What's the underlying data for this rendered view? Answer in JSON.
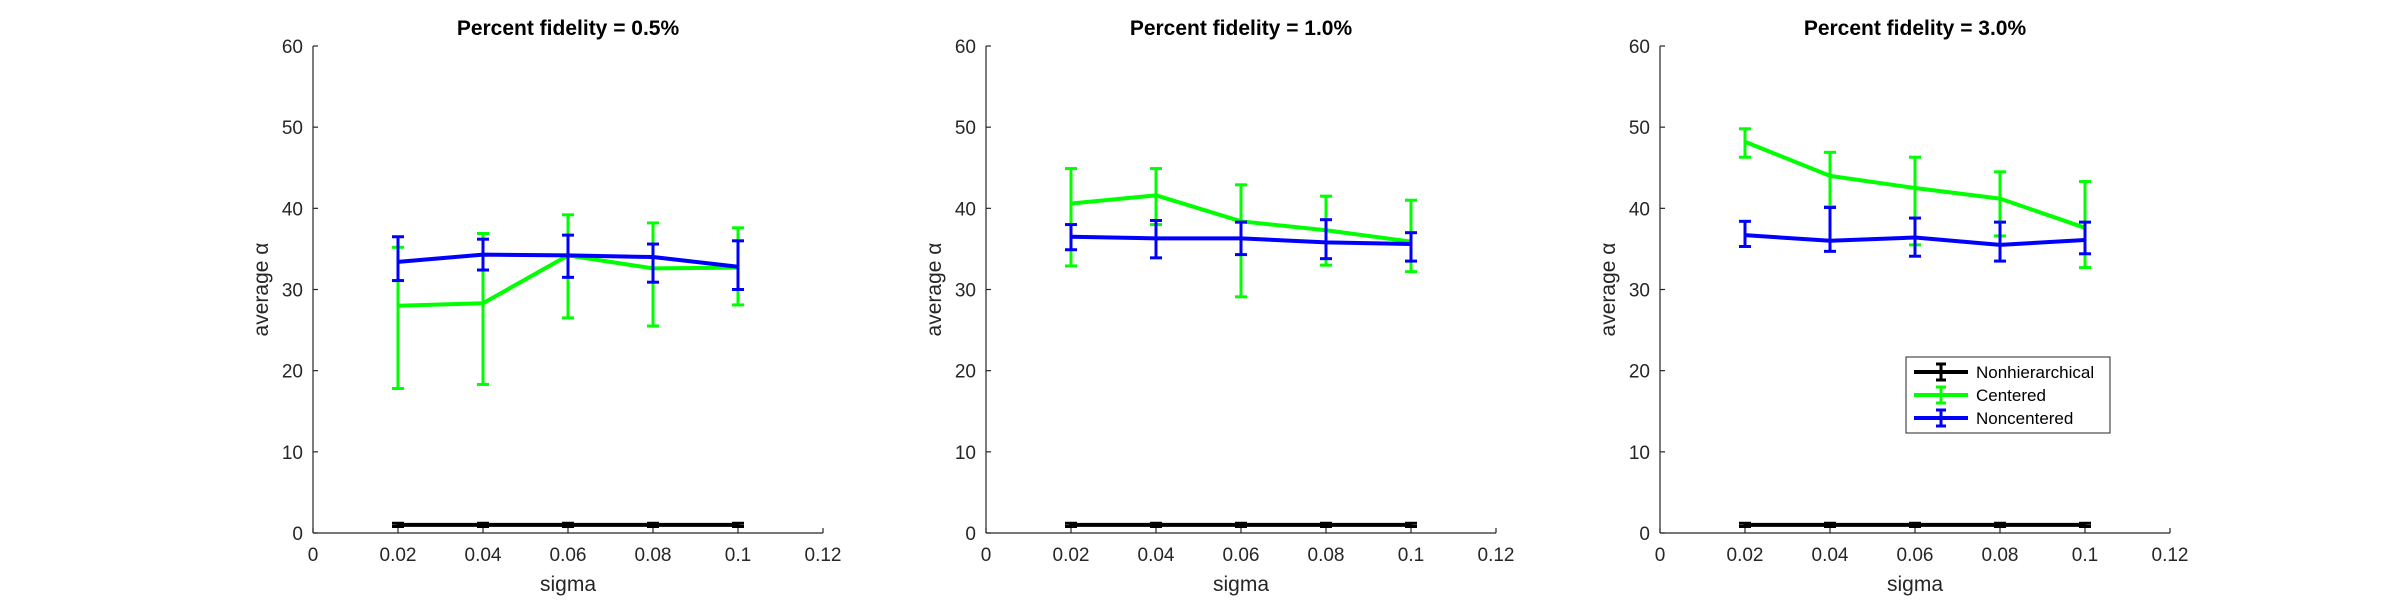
{
  "chart_data": [
    {
      "type": "line",
      "title": "Percent fidelity = 0.5%",
      "xlabel": "sigma",
      "ylabel": "average α",
      "xlim": [
        0,
        0.12
      ],
      "ylim": [
        0,
        60
      ],
      "xticks": [
        "0",
        "0.02",
        "0.04",
        "0.06",
        "0.08",
        "0.1",
        "0.12"
      ],
      "yticks": [
        "0",
        "10",
        "20",
        "30",
        "40",
        "50",
        "60"
      ],
      "x": [
        0.02,
        0.04,
        0.06,
        0.08,
        0.1
      ],
      "grid": false,
      "legend": null,
      "series": [
        {
          "name": "Nonhierarchical",
          "color": "#000000",
          "values": [
            1,
            1,
            1,
            1,
            1
          ],
          "err_low": [
            0.2,
            0.2,
            0.2,
            0.2,
            0.2
          ],
          "err_high": [
            0.2,
            0.2,
            0.2,
            0.2,
            0.2
          ]
        },
        {
          "name": "Centered",
          "color": "#00ff00",
          "values": [
            28,
            28.3,
            34.2,
            32.6,
            32.7
          ],
          "err_low": [
            10.2,
            10,
            7.7,
            7.1,
            4.6
          ],
          "err_high": [
            7.2,
            8.6,
            5,
            5.6,
            4.9
          ]
        },
        {
          "name": "Noncentered",
          "color": "#0000ff",
          "values": [
            33.4,
            34.3,
            34.2,
            34,
            32.8
          ],
          "err_low": [
            2.3,
            1.9,
            2.7,
            3.1,
            2.8
          ],
          "err_high": [
            3.1,
            1.9,
            2.5,
            1.6,
            3.2
          ]
        }
      ]
    },
    {
      "type": "line",
      "title": "Percent fidelity = 1.0%",
      "xlabel": "sigma",
      "ylabel": "average α",
      "xlim": [
        0,
        0.12
      ],
      "ylim": [
        0,
        60
      ],
      "xticks": [
        "0",
        "0.02",
        "0.04",
        "0.06",
        "0.08",
        "0.1",
        "0.12"
      ],
      "yticks": [
        "0",
        "10",
        "20",
        "30",
        "40",
        "50",
        "60"
      ],
      "x": [
        0.02,
        0.04,
        0.06,
        0.08,
        0.1
      ],
      "grid": false,
      "legend": null,
      "series": [
        {
          "name": "Nonhierarchical",
          "color": "#000000",
          "values": [
            1,
            1,
            1,
            1,
            1
          ],
          "err_low": [
            0.2,
            0.2,
            0.2,
            0.2,
            0.2
          ],
          "err_high": [
            0.2,
            0.2,
            0.2,
            0.2,
            0.2
          ]
        },
        {
          "name": "Centered",
          "color": "#00ff00",
          "values": [
            40.6,
            41.6,
            38.4,
            37.3,
            35.9
          ],
          "err_low": [
            7.7,
            3.6,
            9.3,
            4.3,
            3.7
          ],
          "err_high": [
            4.3,
            3.3,
            4.5,
            4.2,
            5.1
          ]
        },
        {
          "name": "Noncentered",
          "color": "#0000ff",
          "values": [
            36.5,
            36.3,
            36.3,
            35.8,
            35.6
          ],
          "err_low": [
            1.6,
            2.4,
            2,
            2,
            2.1
          ],
          "err_high": [
            1.5,
            2.2,
            2,
            2.8,
            1.4
          ]
        }
      ]
    },
    {
      "type": "line",
      "title": "Percent fidelity = 3.0%",
      "xlabel": "sigma",
      "ylabel": "average α",
      "xlim": [
        0,
        0.12
      ],
      "ylim": [
        0,
        60
      ],
      "xticks": [
        "0",
        "0.02",
        "0.04",
        "0.06",
        "0.08",
        "0.1",
        "0.12"
      ],
      "yticks": [
        "0",
        "10",
        "20",
        "30",
        "40",
        "50",
        "60"
      ],
      "x": [
        0.02,
        0.04,
        0.06,
        0.08,
        0.1
      ],
      "grid": false,
      "legend": "bottom-right",
      "series": [
        {
          "name": "Nonhierarchical",
          "color": "#000000",
          "values": [
            1,
            1,
            1,
            1,
            1
          ],
          "err_low": [
            0.2,
            0.2,
            0.2,
            0.2,
            0.2
          ],
          "err_high": [
            0.2,
            0.2,
            0.2,
            0.2,
            0.2
          ]
        },
        {
          "name": "Centered",
          "color": "#00ff00",
          "values": [
            48.2,
            44,
            42.5,
            41.2,
            37.6
          ],
          "err_low": [
            1.9,
            3.8,
            7,
            4.6,
            4.9
          ],
          "err_high": [
            1.6,
            2.9,
            3.8,
            3.3,
            5.7
          ]
        },
        {
          "name": "Noncentered",
          "color": "#0000ff",
          "values": [
            36.7,
            36,
            36.4,
            35.5,
            36.1
          ],
          "err_low": [
            1.4,
            1.3,
            2.3,
            2,
            1.7
          ],
          "err_high": [
            1.7,
            4.1,
            2.4,
            2.8,
            2.2
          ]
        }
      ]
    }
  ]
}
